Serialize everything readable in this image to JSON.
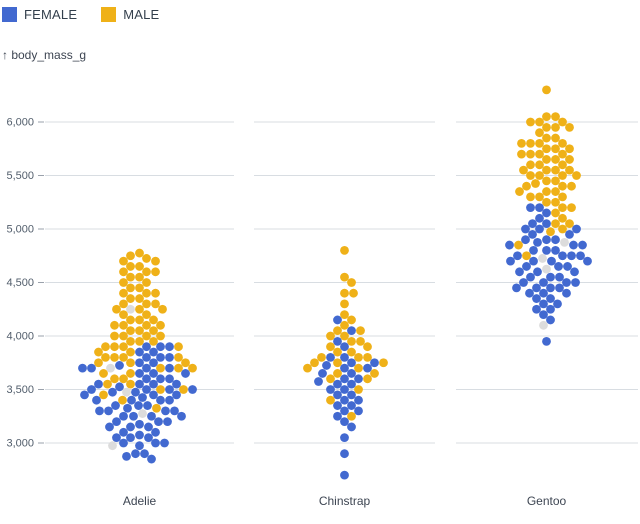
{
  "legend": {
    "items": [
      {
        "label": "FEMALE",
        "color": "#4269d0"
      },
      {
        "label": "MALE",
        "color": "#efb118"
      }
    ]
  },
  "colors": {
    "female": "#4269d0",
    "male": "#efb118",
    "na": "#dcdcdc",
    "grid": "#d8dde2",
    "tick": "#9aa1ab",
    "tick_text": "#515d6b",
    "category_text": "#3d4552"
  },
  "chart_data": {
    "type": "scatter",
    "variant": "beeswarm",
    "title": "",
    "axis_title": "↑ body_mass_g",
    "xlabel": "",
    "ylabel": "body_mass_g",
    "categories": [
      "Adelie",
      "Chinstrap",
      "Gentoo"
    ],
    "ylim": [
      2650,
      6450
    ],
    "grid": true,
    "legend_position": "top-left",
    "yticks": [
      {
        "value": 3000,
        "label": "3,000"
      },
      {
        "value": 3500,
        "label": "3,500"
      },
      {
        "value": 4000,
        "label": "4,000"
      },
      {
        "value": 4500,
        "label": "4,500"
      },
      {
        "value": 5000,
        "label": "5,000"
      },
      {
        "value": 5500,
        "label": "5,500"
      },
      {
        "value": 6000,
        "label": "6,000"
      }
    ],
    "series": [
      {
        "name": "FEMALE",
        "sex": "female",
        "color": "#4269d0",
        "data": {
          "Adelie": [
            [
              2850,
              1
            ],
            [
              2875,
              1
            ],
            [
              2900,
              2
            ],
            [
              2975,
              1
            ],
            [
              3000,
              3
            ],
            [
              3050,
              3
            ],
            [
              3075,
              1
            ],
            [
              3100,
              2
            ],
            [
              3150,
              3
            ],
            [
              3175,
              1
            ],
            [
              3200,
              3
            ],
            [
              3250,
              4
            ],
            [
              3300,
              4
            ],
            [
              3325,
              1
            ],
            [
              3350,
              3
            ],
            [
              3400,
              4
            ],
            [
              3425,
              1
            ],
            [
              3450,
              3
            ],
            [
              3475,
              2
            ],
            [
              3500,
              4
            ],
            [
              3525,
              1
            ],
            [
              3550,
              4
            ],
            [
              3600,
              3
            ],
            [
              3650,
              3
            ],
            [
              3700,
              4
            ],
            [
              3725,
              1
            ],
            [
              3750,
              2
            ],
            [
              3800,
              3
            ],
            [
              3850,
              2
            ],
            [
              3900,
              3
            ]
          ],
          "Chinstrap": [
            [
              2700,
              1
            ],
            [
              2900,
              1
            ],
            [
              3050,
              1
            ],
            [
              3150,
              1
            ],
            [
              3200,
              1
            ],
            [
              3250,
              1
            ],
            [
              3300,
              2
            ],
            [
              3350,
              2
            ],
            [
              3400,
              2
            ],
            [
              3450,
              2
            ],
            [
              3500,
              2
            ],
            [
              3550,
              2
            ],
            [
              3575,
              1
            ],
            [
              3600,
              2
            ],
            [
              3650,
              2
            ],
            [
              3700,
              2
            ],
            [
              3725,
              1
            ],
            [
              3750,
              2
            ],
            [
              3800,
              2
            ],
            [
              3900,
              1
            ],
            [
              3950,
              1
            ],
            [
              4050,
              1
            ],
            [
              4150,
              1
            ]
          ],
          "Gentoo": [
            [
              3950,
              1
            ],
            [
              4150,
              1
            ],
            [
              4200,
              1
            ],
            [
              4250,
              2
            ],
            [
              4300,
              2
            ],
            [
              4350,
              2
            ],
            [
              4400,
              3
            ],
            [
              4450,
              4
            ],
            [
              4500,
              4
            ],
            [
              4550,
              3
            ],
            [
              4600,
              3
            ],
            [
              4650,
              3
            ],
            [
              4700,
              4
            ],
            [
              4750,
              4
            ],
            [
              4800,
              3
            ],
            [
              4850,
              3
            ],
            [
              4875,
              1
            ],
            [
              4900,
              3
            ],
            [
              4950,
              2
            ],
            [
              5000,
              3
            ],
            [
              5050,
              2
            ],
            [
              5100,
              1
            ],
            [
              5150,
              1
            ],
            [
              5200,
              2
            ]
          ]
        }
      },
      {
        "name": "MALE",
        "sex": "male",
        "color": "#efb118",
        "data": {
          "Adelie": [
            [
              3325,
              1
            ],
            [
              3400,
              1
            ],
            [
              3450,
              1
            ],
            [
              3500,
              2
            ],
            [
              3550,
              2
            ],
            [
              3600,
              2
            ],
            [
              3650,
              2
            ],
            [
              3700,
              3
            ],
            [
              3750,
              3
            ],
            [
              3800,
              4
            ],
            [
              3850,
              2
            ],
            [
              3900,
              4
            ],
            [
              3950,
              3
            ],
            [
              4000,
              4
            ],
            [
              4050,
              3
            ],
            [
              4100,
              4
            ],
            [
              4150,
              3
            ],
            [
              4200,
              2
            ],
            [
              4250,
              3
            ],
            [
              4300,
              3
            ],
            [
              4350,
              2
            ],
            [
              4400,
              3
            ],
            [
              4450,
              2
            ],
            [
              4500,
              2
            ],
            [
              4550,
              2
            ],
            [
              4600,
              3
            ],
            [
              4650,
              2
            ],
            [
              4700,
              2
            ],
            [
              4725,
              1
            ],
            [
              4750,
              1
            ],
            [
              4775,
              1
            ]
          ],
          "Chinstrap": [
            [
              3250,
              1
            ],
            [
              3400,
              1
            ],
            [
              3500,
              1
            ],
            [
              3600,
              2
            ],
            [
              3650,
              2
            ],
            [
              3700,
              2
            ],
            [
              3750,
              3
            ],
            [
              3800,
              3
            ],
            [
              3850,
              2
            ],
            [
              3900,
              2
            ],
            [
              3950,
              2
            ],
            [
              4000,
              2
            ],
            [
              4050,
              2
            ],
            [
              4100,
              1
            ],
            [
              4150,
              1
            ],
            [
              4200,
              1
            ],
            [
              4300,
              1
            ],
            [
              4400,
              2
            ],
            [
              4500,
              1
            ],
            [
              4550,
              1
            ],
            [
              4800,
              1
            ]
          ],
          "Gentoo": [
            [
              4750,
              1
            ],
            [
              4850,
              1
            ],
            [
              4975,
              1
            ],
            [
              5000,
              1
            ],
            [
              5050,
              2
            ],
            [
              5100,
              1
            ],
            [
              5150,
              1
            ],
            [
              5200,
              2
            ],
            [
              5250,
              2
            ],
            [
              5300,
              3
            ],
            [
              5350,
              3
            ],
            [
              5400,
              3
            ],
            [
              5425,
              1
            ],
            [
              5450,
              2
            ],
            [
              5500,
              4
            ],
            [
              5550,
              4
            ],
            [
              5600,
              3
            ],
            [
              5650,
              3
            ],
            [
              5700,
              4
            ],
            [
              5750,
              3
            ],
            [
              5800,
              4
            ],
            [
              5850,
              2
            ],
            [
              5900,
              1
            ],
            [
              5950,
              3
            ],
            [
              6000,
              3
            ],
            [
              6050,
              2
            ],
            [
              6300,
              1
            ]
          ]
        }
      },
      {
        "name": "NA",
        "sex": "na",
        "color": "#dcdcdc",
        "data": {
          "Adelie": [
            [
              4250,
              1
            ],
            [
              3700,
              1
            ],
            [
              3475,
              1
            ],
            [
              3275,
              1
            ],
            [
              2975,
              1
            ]
          ],
          "Chinstrap": [],
          "Gentoo": [
            [
              4875,
              1
            ],
            [
              4725,
              1
            ],
            [
              4625,
              1
            ],
            [
              4100,
              1
            ]
          ]
        }
      }
    ]
  }
}
